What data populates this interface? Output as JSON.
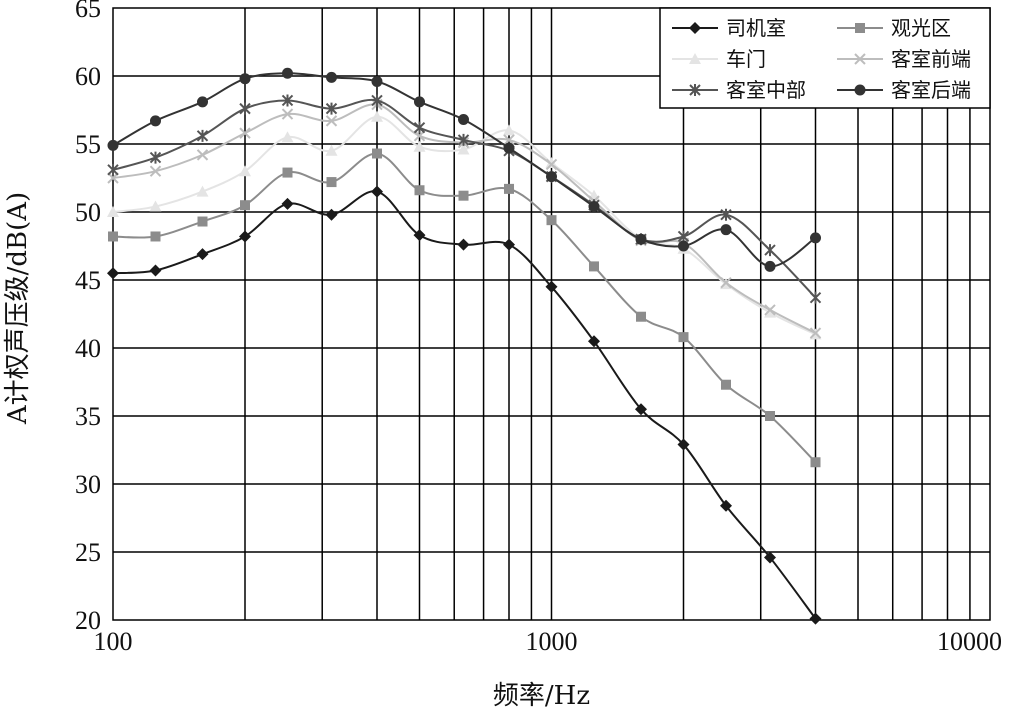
{
  "chart_data": {
    "type": "line",
    "title": "",
    "xlabel": "频率/Hz",
    "ylabel": "A计权声压级/dB(A)",
    "xscale": "log",
    "xlim": [
      100,
      10000
    ],
    "ylim": [
      20,
      65
    ],
    "x_tick_labels": [
      "100",
      "1000",
      "10000"
    ],
    "y_tick_labels": [
      "20",
      "25",
      "30",
      "35",
      "40",
      "45",
      "50",
      "55",
      "60",
      "65"
    ],
    "grid": true,
    "legend_position": "top-right",
    "x": [
      100,
      125,
      160,
      200,
      250,
      315,
      400,
      500,
      630,
      800,
      1000,
      1250,
      1600,
      2000,
      2500,
      3150,
      4000
    ],
    "series": [
      {
        "name": "司机室",
        "marker": "diamond",
        "color": "#1a1a1a",
        "values": [
          45.5,
          45.7,
          46.9,
          48.2,
          50.6,
          49.8,
          51.5,
          48.3,
          47.6,
          47.6,
          44.5,
          40.5,
          35.5,
          32.9,
          28.4,
          24.6,
          20.1
        ]
      },
      {
        "name": "观光区",
        "marker": "square",
        "color": "#8c8c8c",
        "values": [
          48.2,
          48.2,
          49.3,
          50.5,
          52.9,
          52.2,
          54.3,
          51.6,
          51.2,
          51.7,
          49.4,
          46.0,
          42.3,
          40.8,
          37.3,
          35.0,
          31.6
        ]
      },
      {
        "name": "车门",
        "marker": "triangle",
        "color": "#e4e4e4",
        "values": [
          50.0,
          50.4,
          51.5,
          53.0,
          55.5,
          54.5,
          57.0,
          54.8,
          54.6,
          56.0,
          53.6,
          51.2,
          48.0,
          47.3,
          44.7,
          42.6,
          41.0
        ]
      },
      {
        "name": "客室前端",
        "marker": "x",
        "color": "#bdbdbd",
        "values": [
          52.5,
          53.0,
          54.2,
          55.8,
          57.2,
          56.7,
          57.9,
          55.6,
          55.1,
          55.3,
          53.5,
          50.8,
          47.9,
          47.7,
          44.8,
          42.8,
          41.1
        ]
      },
      {
        "name": "客室中部",
        "marker": "star",
        "color": "#555555",
        "values": [
          53.1,
          54.0,
          55.6,
          57.6,
          58.2,
          57.6,
          58.2,
          56.2,
          55.3,
          54.5,
          52.6,
          50.5,
          48.0,
          48.2,
          49.8,
          47.2,
          43.7
        ]
      },
      {
        "name": "客室后端",
        "marker": "circle",
        "color": "#333333",
        "values": [
          54.9,
          56.7,
          58.1,
          59.8,
          60.2,
          59.9,
          59.6,
          58.1,
          56.8,
          54.7,
          52.6,
          50.4,
          48.0,
          47.5,
          48.7,
          46.0,
          48.1
        ]
      }
    ]
  }
}
